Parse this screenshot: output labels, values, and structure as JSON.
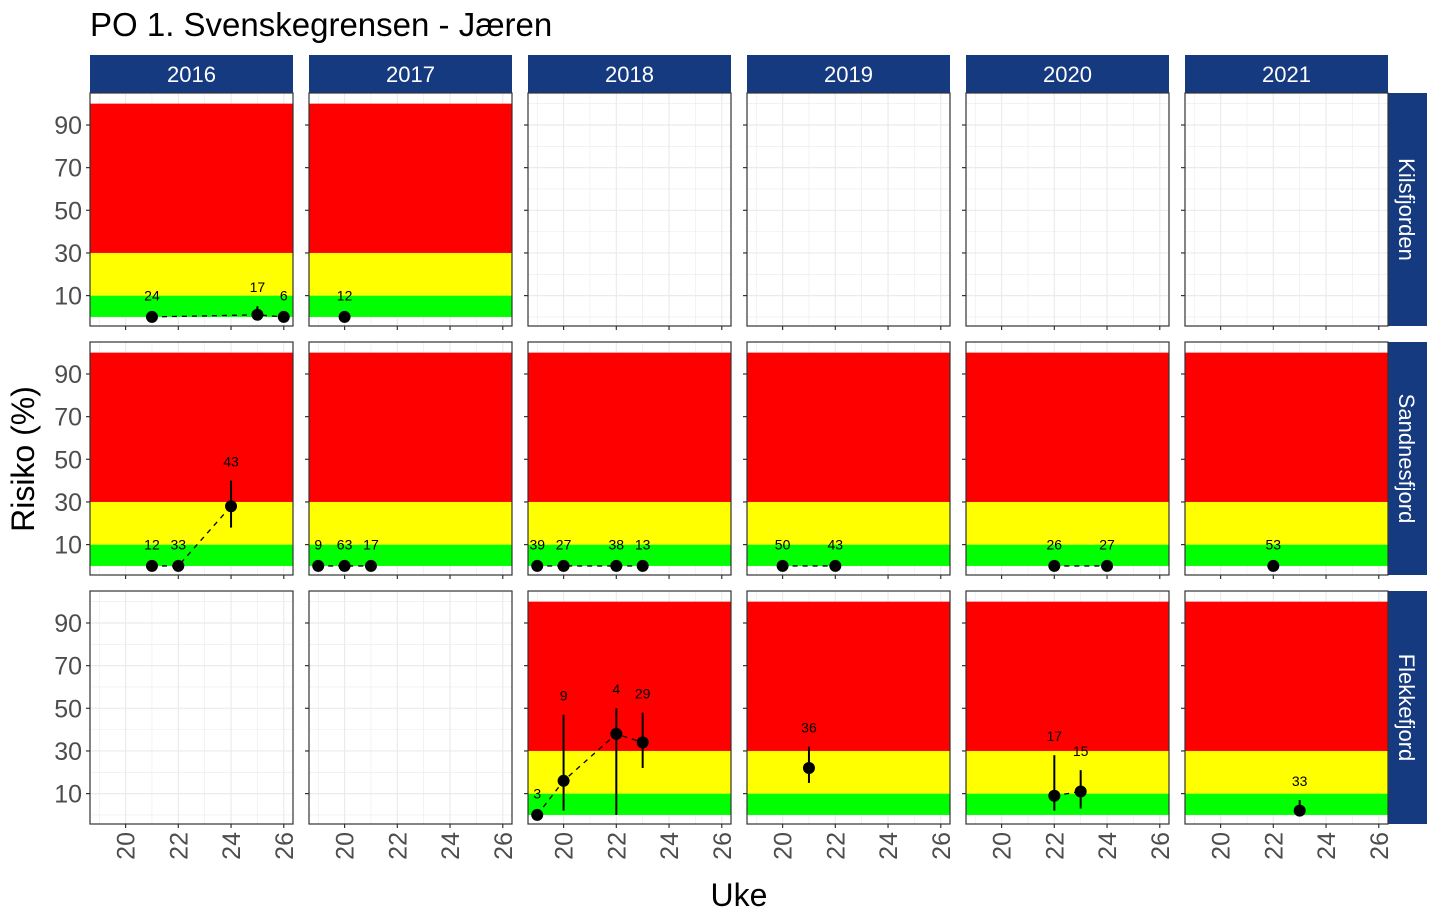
{
  "chart_data": {
    "type": "scatter",
    "title": "PO 1. Svenskegrensen - Jæren",
    "xlabel": "Uke",
    "ylabel": "Risiko (%)",
    "xlim": [
      18.65,
      26.35
    ],
    "ylim": [
      -4.25,
      105
    ],
    "x_ticks": [
      20,
      22,
      24,
      26
    ],
    "y_ticks": [
      10,
      30,
      50,
      70,
      90
    ],
    "grid": true,
    "columns": [
      "2016",
      "2017",
      "2018",
      "2019",
      "2020",
      "2021"
    ],
    "rows": [
      "Kilsfjorden",
      "Sandnesfjord",
      "Flekkefjord"
    ],
    "bands": [
      {
        "from": 0,
        "to": 10,
        "color": "#00ff00"
      },
      {
        "from": 10,
        "to": 30,
        "color": "#ffff00"
      },
      {
        "from": 30,
        "to": 100,
        "color": "#ff0000"
      }
    ],
    "colors": {
      "strip": "#163a80",
      "strip_text": "#ffffff",
      "point": "#000000",
      "grid": "#ebebeb"
    },
    "panels": [
      {
        "row": "Kilsfjorden",
        "col": "2016",
        "bands": true,
        "points": [
          {
            "x": 21,
            "y": 0,
            "lo": 0,
            "hi": 1,
            "label": "24"
          },
          {
            "x": 25,
            "y": 1,
            "lo": 0,
            "hi": 5,
            "label": "17"
          },
          {
            "x": 26,
            "y": 0,
            "lo": 0,
            "hi": 1,
            "label": "6"
          }
        ]
      },
      {
        "row": "Kilsfjorden",
        "col": "2017",
        "bands": true,
        "points": [
          {
            "x": 20,
            "y": 0,
            "lo": 0,
            "hi": 1,
            "label": "12"
          }
        ]
      },
      {
        "row": "Kilsfjorden",
        "col": "2018",
        "bands": false,
        "points": []
      },
      {
        "row": "Kilsfjorden",
        "col": "2019",
        "bands": false,
        "points": []
      },
      {
        "row": "Kilsfjorden",
        "col": "2020",
        "bands": false,
        "points": []
      },
      {
        "row": "Kilsfjorden",
        "col": "2021",
        "bands": false,
        "points": []
      },
      {
        "row": "Sandnesfjord",
        "col": "2016",
        "bands": true,
        "points": [
          {
            "x": 21,
            "y": 0,
            "lo": 0,
            "hi": 1,
            "label": "12"
          },
          {
            "x": 22,
            "y": 0,
            "lo": 0,
            "hi": 1,
            "label": "33"
          },
          {
            "x": 24,
            "y": 28,
            "lo": 18,
            "hi": 40,
            "label": "43"
          }
        ]
      },
      {
        "row": "Sandnesfjord",
        "col": "2017",
        "bands": true,
        "points": [
          {
            "x": 19,
            "y": 0,
            "lo": 0,
            "hi": 1,
            "label": "9"
          },
          {
            "x": 20,
            "y": 0,
            "lo": 0,
            "hi": 1,
            "label": "63"
          },
          {
            "x": 21,
            "y": 0,
            "lo": 0,
            "hi": 1,
            "label": "17"
          }
        ]
      },
      {
        "row": "Sandnesfjord",
        "col": "2018",
        "bands": true,
        "points": [
          {
            "x": 19,
            "y": 0,
            "lo": 0,
            "hi": 1,
            "label": "39"
          },
          {
            "x": 20,
            "y": 0,
            "lo": 0,
            "hi": 1,
            "label": "27"
          },
          {
            "x": 22,
            "y": 0,
            "lo": 0,
            "hi": 1,
            "label": "38"
          },
          {
            "x": 23,
            "y": 0,
            "lo": 0,
            "hi": 1,
            "label": "13"
          }
        ]
      },
      {
        "row": "Sandnesfjord",
        "col": "2019",
        "bands": true,
        "points": [
          {
            "x": 20,
            "y": 0,
            "lo": 0,
            "hi": 1,
            "label": "50"
          },
          {
            "x": 22,
            "y": 0,
            "lo": 0,
            "hi": 1,
            "label": "43"
          }
        ]
      },
      {
        "row": "Sandnesfjord",
        "col": "2020",
        "bands": true,
        "points": [
          {
            "x": 22,
            "y": 0,
            "lo": 0,
            "hi": 1,
            "label": "26"
          },
          {
            "x": 24,
            "y": 0,
            "lo": 0,
            "hi": 1,
            "label": "27"
          }
        ]
      },
      {
        "row": "Sandnesfjord",
        "col": "2021",
        "bands": true,
        "points": [
          {
            "x": 22,
            "y": 0,
            "lo": 0,
            "hi": 1,
            "label": "53"
          }
        ]
      },
      {
        "row": "Flekkefjord",
        "col": "2016",
        "bands": false,
        "points": []
      },
      {
        "row": "Flekkefjord",
        "col": "2017",
        "bands": false,
        "points": []
      },
      {
        "row": "Flekkefjord",
        "col": "2018",
        "bands": true,
        "points": [
          {
            "x": 19,
            "y": 0,
            "lo": 0,
            "hi": 1,
            "label": "3"
          },
          {
            "x": 20,
            "y": 16,
            "lo": 2,
            "hi": 47,
            "label": "9"
          },
          {
            "x": 22,
            "y": 38,
            "lo": 0,
            "hi": 50,
            "label": "4"
          },
          {
            "x": 23,
            "y": 34,
            "lo": 22,
            "hi": 48,
            "label": "29"
          }
        ]
      },
      {
        "row": "Flekkefjord",
        "col": "2019",
        "bands": true,
        "points": [
          {
            "x": 21,
            "y": 22,
            "lo": 15,
            "hi": 32,
            "label": "36"
          }
        ]
      },
      {
        "row": "Flekkefjord",
        "col": "2020",
        "bands": true,
        "points": [
          {
            "x": 22,
            "y": 9,
            "lo": 2,
            "hi": 28,
            "label": "17"
          },
          {
            "x": 23,
            "y": 11,
            "lo": 3,
            "hi": 21,
            "label": "15"
          }
        ]
      },
      {
        "row": "Flekkefjord",
        "col": "2021",
        "bands": true,
        "points": [
          {
            "x": 23,
            "y": 2,
            "lo": 0,
            "hi": 7,
            "label": "33"
          }
        ]
      }
    ]
  }
}
